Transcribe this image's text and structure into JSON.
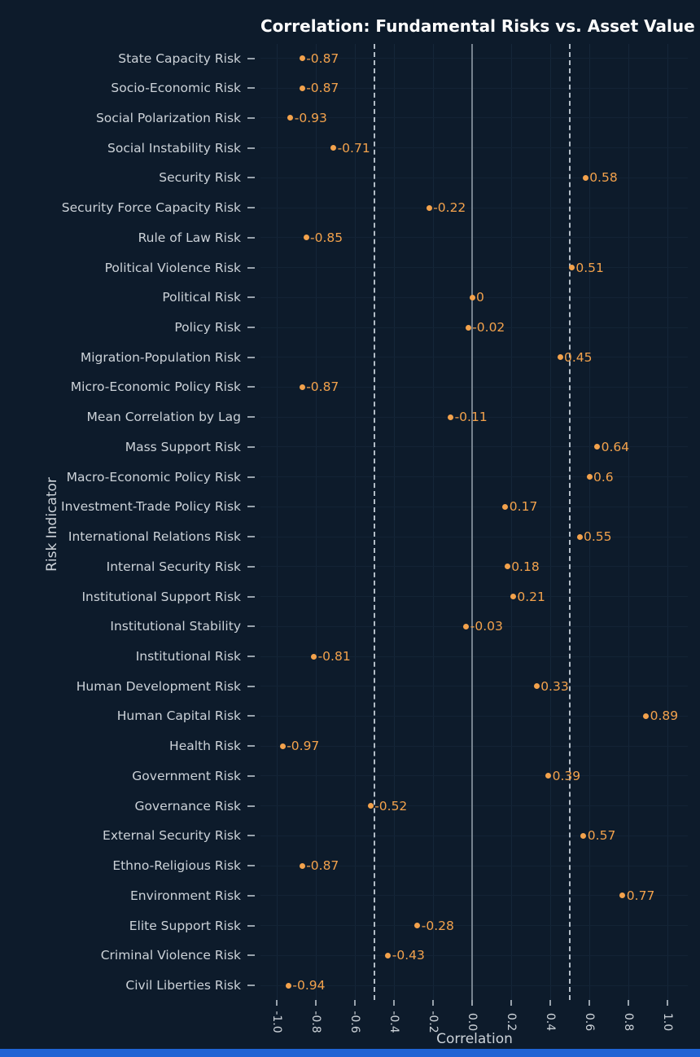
{
  "colors": {
    "background": "#0d1b2b",
    "point": "#f3a24c",
    "title": "#ffffff",
    "axis_text": "#ccd2d8",
    "zero_line": "#76828e",
    "dashed_line": "#c6cfd8",
    "bottom_bar": "#2064d4"
  },
  "chart_data": {
    "type": "scatter",
    "title": "Correlation: Fundamental Risks vs. Asset Value",
    "xlabel": "Correlation",
    "ylabel": "Risk Indicator",
    "xlim": [
      -1.1,
      1.1
    ],
    "x_ticks": [
      -1.0,
      -0.8,
      -0.6,
      -0.4,
      -0.2,
      0.0,
      0.2,
      0.4,
      0.6,
      0.8,
      1.0
    ],
    "x_tick_labels": [
      "-1.0",
      "-0.8",
      "-0.6",
      "-0.4",
      "-0.2",
      "0.0",
      "0.2",
      "0.4",
      "0.6",
      "0.8",
      "1.0"
    ],
    "reference_lines": {
      "solid": [
        0.0
      ],
      "dashed": [
        -0.5,
        0.5
      ]
    },
    "grid": true,
    "legend": "none",
    "categories": [
      "State Capacity Risk",
      "Socio-Economic Risk",
      "Social Polarization Risk",
      "Social Instability Risk",
      "Security Risk",
      "Security Force Capacity Risk",
      "Rule of Law Risk",
      "Political Violence Risk",
      "Political Risk",
      "Policy Risk",
      "Migration-Population Risk",
      "Micro-Economic Policy Risk",
      "Mean Correlation by Lag",
      "Mass Support Risk",
      "Macro-Economic Policy Risk",
      "Investment-Trade Policy Risk",
      "International Relations Risk",
      "Internal Security Risk",
      "Institutional Support Risk",
      "Institutional Stability",
      "Institutional Risk",
      "Human Development Risk",
      "Human Capital Risk",
      "Health Risk",
      "Government Risk",
      "Governance Risk",
      "External Security Risk",
      "Ethno-Religious Risk",
      "Environment Risk",
      "Elite Support Risk",
      "Criminal Violence Risk",
      "Civil Liberties Risk"
    ],
    "values": [
      -0.87,
      -0.87,
      -0.93,
      -0.71,
      0.58,
      -0.22,
      -0.85,
      0.51,
      0,
      -0.02,
      0.45,
      -0.87,
      -0.11,
      0.64,
      0.6,
      0.17,
      0.55,
      0.18,
      0.21,
      -0.03,
      -0.81,
      0.33,
      0.89,
      -0.97,
      0.39,
      -0.52,
      0.57,
      -0.87,
      0.77,
      -0.28,
      -0.43,
      -0.94
    ],
    "point_labels": [
      "-0.87",
      "-0.87",
      "-0.93",
      "-0.71",
      "0.58",
      "-0.22",
      "-0.85",
      "0.51",
      "0",
      "-0.02",
      "0.45",
      "-0.87",
      "-0.11",
      "0.64",
      "0.6",
      "0.17",
      "0.55",
      "0.18",
      "0.21",
      "-0.03",
      "-0.81",
      "0.33",
      "0.89",
      "-0.97",
      "0.39",
      "-0.52",
      "0.57",
      "-0.87",
      "0.77",
      "-0.28",
      "-0.43",
      "-0.94"
    ]
  }
}
